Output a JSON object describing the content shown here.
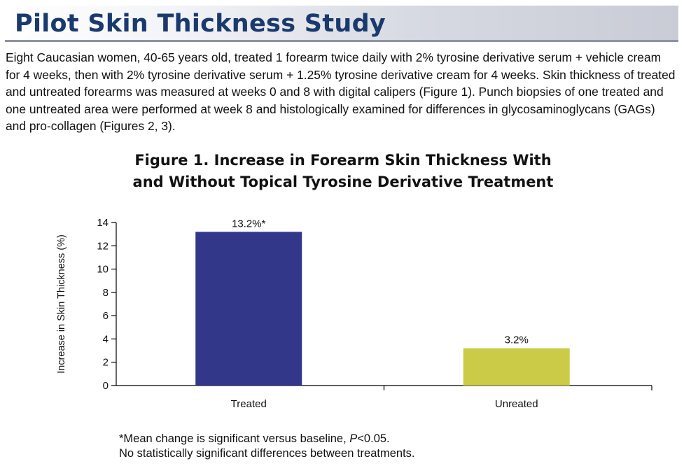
{
  "header": {
    "title": "Pilot Skin Thickness Study"
  },
  "intro_text": "Eight Caucasian women, 40-65 years old, treated 1 forearm twice daily with 2% tyrosine derivative serum + vehicle cream for 4 weeks, then with 2% tyrosine derivative serum + 1.25% tyrosine derivative cream for 4 weeks. Skin thickness of treated and untreated forearms was measured at weeks 0 and 8 with digital calipers (Figure 1). Punch biopsies of one treated and one untreated area were performed at week 8 and histologically examined for differences in glycosaminoglycans (GAGs) and pro-collagen (Figures 2, 3).",
  "chart_data": {
    "type": "bar",
    "title": "Figure 1. Increase in Forearm Skin Thickness With\nand Without Topical Tyrosine Derivative Treatment",
    "xlabel": "",
    "ylabel": "Increase in Skin Thickness (%)",
    "categories": [
      "Treated",
      "Unreated"
    ],
    "values": [
      13.2,
      3.2
    ],
    "data_labels": [
      "13.2%*",
      "3.2%"
    ],
    "colors": [
      "#32378a",
      "#cccb47"
    ],
    "ylim": [
      0,
      14
    ],
    "yticks": [
      0,
      2,
      4,
      6,
      8,
      10,
      12,
      14
    ],
    "grid": false,
    "legend": "none"
  },
  "footnotes": {
    "line1_before": "*Mean change is significant versus baseline, ",
    "line1_p": "P",
    "line1_after": "<0.05.",
    "line2": "No statistically significant differences between treatments."
  }
}
